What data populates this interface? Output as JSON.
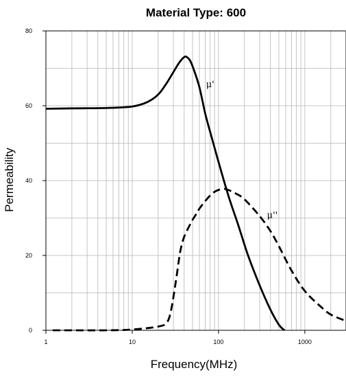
{
  "chart_data": {
    "type": "line",
    "title": "Material Type: 600",
    "xlabel": "Frequency(MHz)",
    "ylabel": "Permeability",
    "x_scale": "log",
    "xlim": [
      1,
      3000
    ],
    "ylim": [
      0,
      80
    ],
    "x_ticks": [
      1,
      10,
      100,
      1000
    ],
    "x_tick_labels": [
      "1",
      "10",
      "100",
      "1000"
    ],
    "y_ticks": [
      0,
      20,
      40,
      60,
      80
    ],
    "y_tick_labels": [
      "0",
      "20",
      "40",
      "60",
      "80"
    ],
    "grid": true,
    "legend": "none",
    "series": [
      {
        "name": "μ'",
        "line_style": "solid",
        "x": [
          1,
          2,
          5,
          10,
          15,
          20,
          25,
          30,
          35,
          40,
          43,
          47,
          52,
          60,
          70,
          80,
          100,
          130,
          170,
          220,
          300,
          400,
          500,
          580
        ],
        "y": [
          59.2,
          59.3,
          59.4,
          59.8,
          61,
          63,
          66,
          69,
          71.5,
          73,
          73,
          72,
          69.5,
          65,
          58,
          53,
          45,
          36,
          28,
          20,
          12,
          5.5,
          1.5,
          0
        ]
      },
      {
        "name": "μ''",
        "line_style": "dashed",
        "x": [
          1.2,
          2,
          5,
          10,
          20,
          25,
          28,
          32,
          36,
          40,
          45,
          50,
          55,
          60,
          70,
          80,
          90,
          100,
          115,
          130,
          160,
          200,
          300,
          400,
          500,
          700,
          1000,
          1500,
          2000,
          3000
        ],
        "y": [
          0,
          0,
          0,
          0.2,
          1,
          2,
          5,
          13,
          21,
          25,
          27.5,
          29.5,
          31,
          32.5,
          34.5,
          36,
          37,
          37.5,
          37.8,
          37.5,
          36.5,
          35,
          30.5,
          26.5,
          22.5,
          16,
          10.5,
          6.5,
          4.2,
          2.5
        ]
      }
    ],
    "annotations": [
      {
        "text": "μ'",
        "x": 80,
        "y": 65
      },
      {
        "text": "μ''",
        "x": 420,
        "y": 30
      }
    ]
  }
}
